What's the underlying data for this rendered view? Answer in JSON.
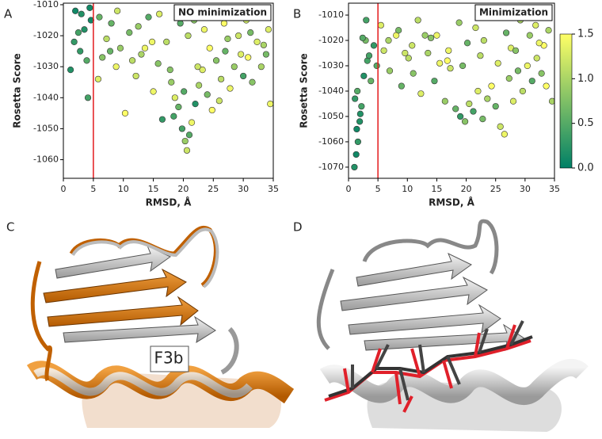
{
  "chart_data": [
    {
      "type": "scatter",
      "panel": "A",
      "annotation": "NO minimization",
      "xlabel": "RMSD, Å",
      "ylabel": "Rosetta Score",
      "x": [
        1.2,
        2.0,
        2.8,
        3.5,
        4.1,
        4.6,
        1.8,
        3.0,
        3.9,
        4.4,
        2.5,
        5.8,
        6.5,
        7.2,
        8.0,
        8.8,
        9.5,
        10.3,
        11.0,
        12.1,
        13.0,
        14.2,
        15.0,
        15.8,
        16.5,
        17.2,
        18.0,
        18.6,
        19.2,
        19.8,
        20.3,
        20.6,
        21.0,
        21.4,
        22.0,
        22.6,
        23.2,
        24.0,
        24.8,
        25.5,
        26.3,
        27.0,
        27.8,
        28.5,
        29.2,
        30.0,
        30.8,
        31.5,
        32.3,
        33.0,
        33.8,
        34.5,
        6.0,
        9.0,
        12.5,
        16.0,
        19.5,
        20.8,
        21.8,
        23.5,
        25.0,
        26.8,
        28.8,
        30.5,
        32.8,
        34.2,
        7.8,
        11.5,
        14.8,
        17.8,
        20.1,
        22.4,
        24.4,
        27.4,
        29.6,
        31.2,
        33.4,
        13.6,
        18.4,
        26.0
      ],
      "y": [
        -1031,
        -1012,
        -1025,
        -1018,
        -1040,
        -1015,
        -1022,
        -1013,
        -1028,
        -1011,
        -1019,
        -1034,
        -1027,
        -1021,
        -1016,
        -1030,
        -1024,
        -1045,
        -1019,
        -1033,
        -1026,
        -1014,
        -1038,
        -1029,
        -1047,
        -1022,
        -1035,
        -1040,
        -1043,
        -1050,
        -1054,
        -1057,
        -1052,
        -1048,
        -1042,
        -1036,
        -1031,
        -1039,
        -1044,
        -1028,
        -1034,
        -1025,
        -1037,
        -1030,
        -1020,
        -1033,
        -1027,
        -1035,
        -1022,
        -1030,
        -1026,
        -1042,
        -1014,
        -1012,
        -1017,
        -1013,
        -1016,
        -1020,
        -1015,
        -1018,
        -1013,
        -1016,
        -1012,
        -1015,
        -1014,
        -1018,
        -1025,
        -1028,
        -1022,
        -1031,
        -1038,
        -1030,
        -1024,
        -1021,
        -1026,
        -1019,
        -1023,
        -1024,
        -1046,
        -1041
      ],
      "color_values": [
        0.2,
        0.1,
        0.3,
        0.2,
        0.4,
        0.1,
        0.3,
        0.2,
        0.5,
        0.1,
        0.4,
        1.3,
        0.8,
        1.1,
        0.6,
        1.4,
        0.9,
        1.5,
        0.7,
        1.2,
        1.0,
        0.5,
        1.4,
        0.8,
        0.3,
        1.1,
        0.9,
        1.3,
        0.6,
        0.4,
        0.9,
        1.2,
        0.5,
        1.4,
        0.2,
        1.0,
        1.3,
        0.7,
        1.5,
        0.8,
        1.1,
        0.6,
        1.4,
        0.9,
        1.2,
        0.4,
        1.5,
        0.8,
        1.3,
        1.0,
        0.7,
        1.4,
        0.6,
        1.2,
        0.9,
        1.3,
        0.5,
        1.1,
        0.8,
        1.4,
        1.0,
        1.5,
        0.7,
        1.2,
        0.9,
        1.3,
        0.6,
        1.1,
        1.4,
        0.8,
        0.5,
        1.2,
        1.5,
        0.9,
        1.3,
        0.7,
        1.0,
        1.4,
        0.4,
        1.2
      ],
      "xlim": [
        0,
        35
      ],
      "xticks": [
        0,
        5,
        10,
        15,
        20,
        25,
        30,
        35
      ],
      "ylim": [
        -1066,
        -1009.5
      ],
      "yticks": [
        -1060,
        -1050,
        -1040,
        -1030,
        -1020,
        -1010
      ],
      "colormap": "summer",
      "clim": [
        0,
        1.5
      ],
      "vline": 5,
      "vline_color": "#e41a1c"
    },
    {
      "type": "scatter",
      "panel": "B",
      "annotation": "Minimization",
      "xlabel": "RMSD, Å",
      "ylabel": "Rosetta Score",
      "x": [
        1.0,
        1.3,
        1.6,
        1.9,
        2.2,
        1.1,
        1.5,
        2.6,
        3.2,
        3.8,
        4.3,
        4.8,
        1.4,
        2.0,
        2.9,
        3.5,
        6.0,
        7.0,
        8.1,
        9.0,
        10.2,
        11.0,
        12.3,
        13.5,
        14.6,
        15.5,
        16.4,
        17.3,
        18.2,
        19.0,
        19.8,
        20.5,
        21.2,
        22.0,
        22.8,
        23.6,
        24.3,
        25.0,
        25.8,
        26.5,
        27.3,
        28.0,
        28.8,
        29.6,
        30.4,
        31.2,
        32.0,
        32.8,
        33.6,
        34.6,
        5.5,
        8.5,
        11.8,
        15.0,
        18.8,
        21.6,
        24.8,
        26.8,
        29.2,
        31.8,
        2.4,
        6.8,
        10.8,
        14.0,
        17.0,
        20.2,
        23.0,
        27.6,
        30.8,
        33.2,
        3.0,
        9.6,
        13.0,
        16.8,
        19.4,
        22.4,
        25.4,
        28.4,
        32.4,
        34.0
      ],
      "y": [
        -1070,
        -1065,
        -1060,
        -1052,
        -1046,
        -1043,
        -1040,
        -1034,
        -1028,
        -1036,
        -1022,
        -1030,
        -1055,
        -1049,
        -1020,
        -1026,
        -1024,
        -1032,
        -1018,
        -1038,
        -1027,
        -1033,
        -1041,
        -1025,
        -1036,
        -1029,
        -1044,
        -1031,
        -1047,
        -1050,
        -1052,
        -1045,
        -1048,
        -1040,
        -1051,
        -1043,
        -1038,
        -1046,
        -1054,
        -1057,
        -1035,
        -1044,
        -1032,
        -1040,
        -1030,
        -1036,
        -1027,
        -1033,
        -1038,
        -1044,
        -1014,
        -1016,
        -1012,
        -1018,
        -1013,
        -1015,
        -1011,
        -1017,
        -1012,
        -1014,
        -1019,
        -1020,
        -1022,
        -1019,
        -1024,
        -1021,
        -1020,
        -1023,
        -1018,
        -1022,
        -1012,
        -1025,
        -1018,
        -1028,
        -1030,
        -1026,
        -1029,
        -1024,
        -1021,
        -1016
      ],
      "color_values": [
        0.2,
        0.1,
        0.3,
        0.2,
        0.4,
        0.3,
        0.5,
        0.2,
        0.4,
        0.6,
        0.3,
        0.5,
        0.1,
        0.2,
        0.7,
        0.4,
        1.2,
        0.9,
        1.4,
        0.6,
        1.1,
        0.8,
        1.3,
        1.0,
        0.5,
        1.4,
        0.9,
        1.2,
        0.6,
        0.3,
        0.8,
        1.1,
        0.4,
        1.3,
        0.7,
        1.0,
        1.5,
        0.6,
        1.2,
        1.4,
        0.9,
        1.3,
        0.7,
        1.1,
        1.4,
        0.5,
        1.2,
        0.8,
        1.5,
        1.0,
        1.3,
        0.7,
        1.1,
        1.4,
        0.9,
        1.2,
        1.5,
        0.6,
        1.0,
        1.3,
        0.5,
        1.0,
        1.2,
        0.8,
        1.4,
        0.6,
        1.1,
        1.3,
        0.9,
        1.5,
        0.4,
        1.2,
        0.9,
        1.5,
        0.7,
        1.1,
        1.3,
        0.8,
        1.4,
        1.0
      ],
      "xlim": [
        0,
        35
      ],
      "xticks": [
        0,
        5,
        10,
        15,
        20,
        25,
        30,
        35
      ],
      "ylim": [
        -1074.4,
        -1005.3
      ],
      "yticks": [
        -1070,
        -1060,
        -1050,
        -1040,
        -1030,
        -1020,
        -1010
      ],
      "colormap": "summer",
      "clim": [
        0,
        1.5
      ],
      "vline": 5,
      "vline_color": "#e41a1c",
      "colorbar_ticks": [
        {
          "value": 0,
          "label": "0.0"
        },
        {
          "value": 0.5,
          "label": "0.5"
        },
        {
          "value": 1,
          "label": "1.0"
        },
        {
          "value": 1.5,
          "label": "1.5"
        }
      ]
    }
  ],
  "figures": [
    {
      "panel": "C",
      "label": "F3b"
    },
    {
      "panel": "D"
    }
  ]
}
